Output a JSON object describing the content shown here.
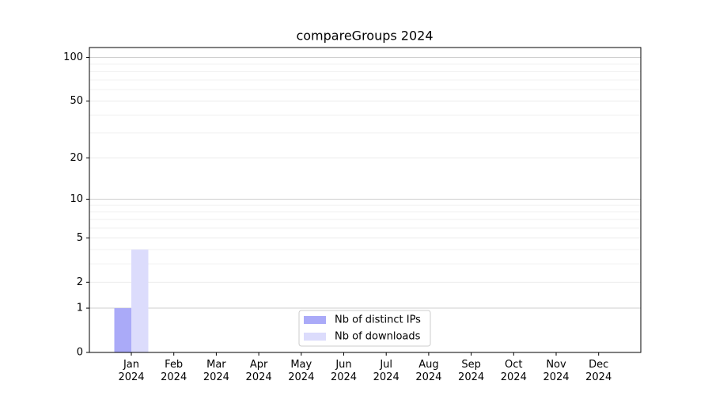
{
  "chart_data": {
    "type": "bar",
    "title": "compareGroups 2024",
    "categories": [
      "Jan 2024",
      "Feb 2024",
      "Mar 2024",
      "Apr 2024",
      "May 2024",
      "Jun 2024",
      "Jul 2024",
      "Aug 2024",
      "Sep 2024",
      "Oct 2024",
      "Nov 2024",
      "Dec 2024"
    ],
    "series": [
      {
        "name": "Nb of distinct IPs",
        "color": "#aaaaf8",
        "values": [
          1,
          0,
          0,
          0,
          0,
          0,
          0,
          0,
          0,
          0,
          0,
          0
        ]
      },
      {
        "name": "Nb of downloads",
        "color": "#dcdcfc",
        "values": [
          4,
          0,
          0,
          0,
          0,
          0,
          0,
          0,
          0,
          0,
          0,
          0
        ]
      }
    ],
    "yscale": "log1p",
    "ylim": [
      0,
      117
    ],
    "yticks": [
      0,
      1,
      2,
      5,
      10,
      20,
      50,
      100
    ],
    "yminorticks": [
      3,
      4,
      6,
      7,
      8,
      9,
      30,
      40,
      60,
      70,
      80,
      90
    ],
    "grid": true,
    "legend": "lower center"
  }
}
